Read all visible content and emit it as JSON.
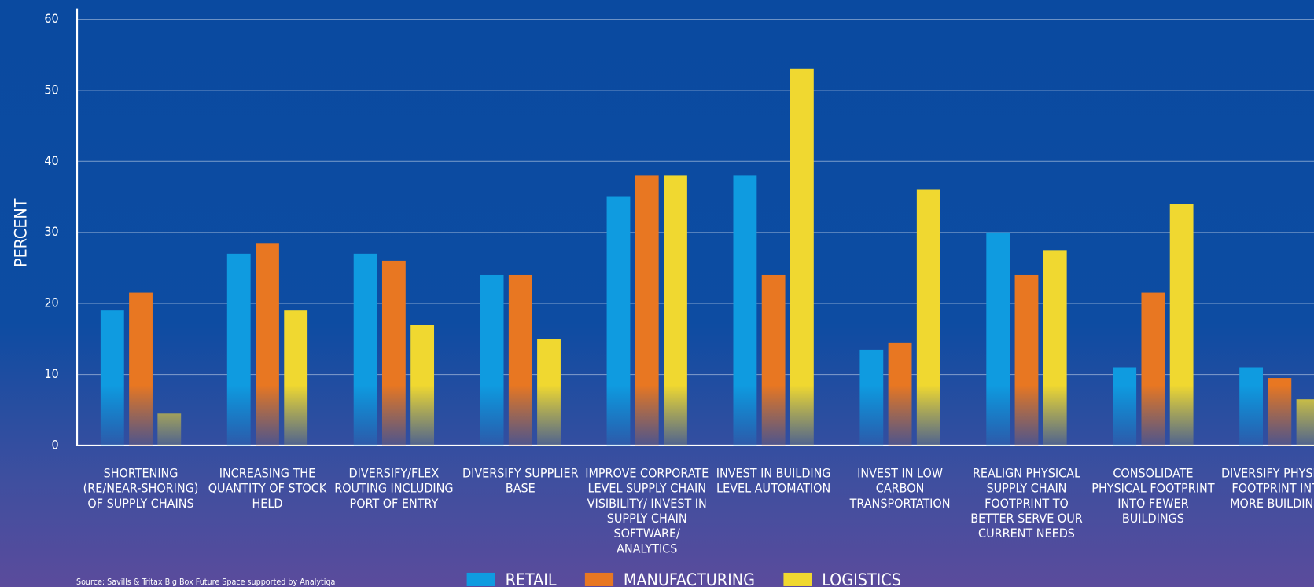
{
  "chart_data": {
    "type": "bar",
    "y_label": "PERCENT",
    "source": "Source: Savills & Tritax Big Box Future Space supported by Analytiqa",
    "categories": [
      "SHORTENING (RE/NEAR-SHORING) OF SUPPLY CHAINS",
      "INCREASING THE QUANTITY OF STOCK HELD",
      "DIVERSIFY/FLEX ROUTING INCLUDING PORT OF ENTRY",
      "DIVERSIFY SUPPLIER BASE",
      "IMPROVE CORPORATE LEVEL SUPPLY CHAIN VISIBILITY/ INVEST IN SUPPLY CHAIN SOFTWARE/ ANALYTICS",
      "INVEST IN BUILDING LEVEL AUTOMATION",
      "INVEST IN LOW CARBON TRANSPORTATION",
      "REALIGN PHYSICAL SUPPLY CHAIN FOOTPRINT TO BETTER SERVE OUR CURRENT NEEDS",
      "CONSOLIDATE PHYSICAL FOOTPRINT INTO FEWER BUILDINGS",
      "DIVERSIFY PHYSICAL FOOTPRINT INTO MORE BUILDINGS"
    ],
    "series": [
      {
        "name": "RETAIL",
        "color": "#0f9be0",
        "values": [
          19,
          27,
          27,
          24,
          35,
          38,
          13.5,
          30,
          11,
          11
        ]
      },
      {
        "name": "MANUFACTURING",
        "color": "#e87722",
        "values": [
          21.5,
          28.5,
          26,
          24,
          38,
          24,
          14.5,
          24,
          21.5,
          9.5
        ]
      },
      {
        "name": "LOGISTICS",
        "color": "#f0d830",
        "values": [
          4.5,
          19,
          17,
          15,
          38,
          53,
          36,
          27.5,
          34,
          6.5
        ]
      }
    ],
    "ylim": [
      0,
      60
    ],
    "yticks": [
      0,
      10,
      20,
      30,
      40,
      50,
      60
    ],
    "grid": true
  }
}
